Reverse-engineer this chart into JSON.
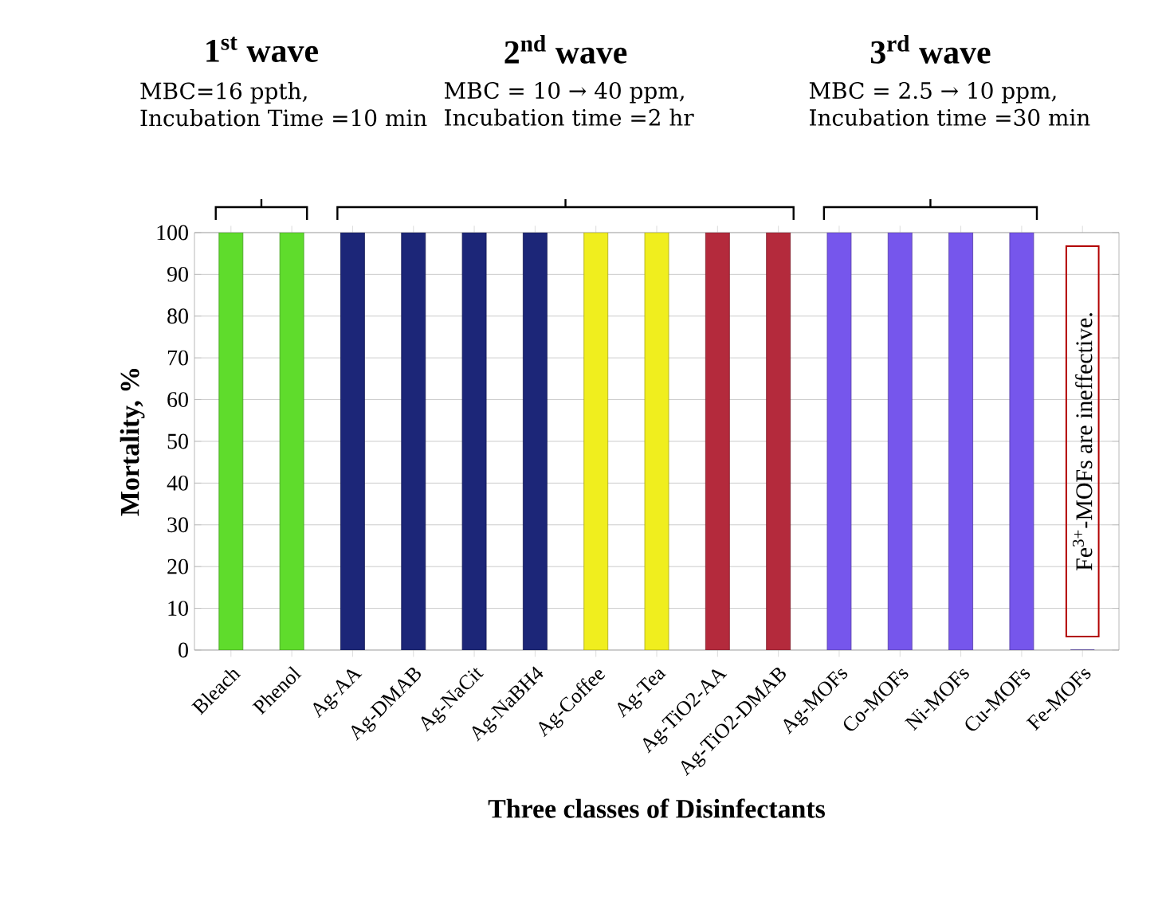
{
  "chart_data": {
    "type": "bar",
    "categories": [
      "Bleach",
      "Phenol",
      "Ag-AA",
      "Ag-DMAB",
      "Ag-NaCit",
      "Ag-NaBH4",
      "Ag-Coffee",
      "Ag-Tea",
      "Ag-TiO2-AA",
      "Ag-TiO2-DMAB",
      "Ag-MOFs",
      "Co-MOFs",
      "Ni-MOFs",
      "Cu-MOFs",
      "Fe-MOFs"
    ],
    "values": [
      100,
      100,
      100,
      100,
      100,
      100,
      100,
      100,
      100,
      100,
      100,
      100,
      100,
      100,
      0
    ],
    "colors": [
      "#5fdc2c",
      "#5fdc2c",
      "#1c2678",
      "#1c2678",
      "#1c2678",
      "#1c2678",
      "#f0ee1e",
      "#f0ee1e",
      "#b42a3c",
      "#b42a3c",
      "#7656ec",
      "#7656ec",
      "#7656ec",
      "#7656ec",
      "#5a3ed0"
    ],
    "ylim": [
      0,
      100
    ],
    "yticks": [
      0,
      10,
      20,
      30,
      40,
      50,
      60,
      70,
      80,
      90,
      100
    ],
    "grid": "y",
    "ylabel": "Mortality,  %",
    "xlabel": "Three classes of Disinfectants",
    "annotations": [
      "1$^{st}$ wave",
      "MBC=16 ppth,",
      "Incubation Time =10 min",
      "2$^{nd}$ wave",
      "MBC = 10 → 40 ppm,",
      "Incubation time =2 hr",
      "3$^{rd}$ wave",
      "MBC = 2.5 → 10 ppm,",
      "Incubation time =30 min",
      "Fe$^{3+}$-MOFs are ineffective."
    ]
  }
}
